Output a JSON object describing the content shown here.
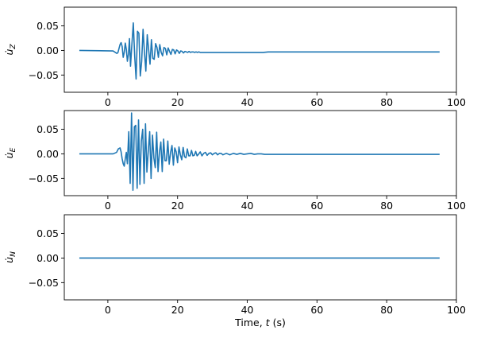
{
  "chart_data": [
    {
      "type": "line",
      "ylabel": "u̇_Z",
      "ylabel_base": "u̇",
      "ylabel_sub": "Z",
      "xlabel": "",
      "xlim": [
        -12.5,
        100
      ],
      "ylim": [
        -0.085,
        0.088
      ],
      "xticks": [
        0,
        20,
        40,
        60,
        80,
        100
      ],
      "yticks": [
        0.05,
        0.0,
        -0.05
      ],
      "xtick_labels": [
        "0",
        "20",
        "40",
        "60",
        "80",
        "100"
      ],
      "ytick_labels": [
        "0.05",
        "0.00",
        "−0.05"
      ],
      "color": "#1f77b4",
      "series": [
        {
          "x": [
            -8,
            1.5,
            2.6,
            2.9,
            3.2,
            3.5,
            3.8,
            4.1,
            4.4,
            4.7,
            5.0,
            5.3,
            5.6,
            5.9,
            6.2,
            6.5,
            6.9,
            7.3,
            7.7,
            8.1,
            8.5,
            8.9,
            9.3,
            9.7,
            10.1,
            10.5,
            10.9,
            11.3,
            11.7,
            12.1,
            12.5,
            12.9,
            13.3,
            13.7,
            14.1,
            14.5,
            14.9,
            15.3,
            15.7,
            16.1,
            16.5,
            16.9,
            17.3,
            17.7,
            18.1,
            18.5,
            18.9,
            19.3,
            19.7,
            20.1,
            20.5,
            20.9,
            21.3,
            21.7,
            22.1,
            22.5,
            22.9,
            23.3,
            23.7,
            24.1,
            24.5,
            24.9,
            25.3,
            25.7,
            26.1,
            26.5,
            27,
            28,
            30,
            35,
            40,
            44.5,
            46,
            60,
            80,
            95
          ],
          "y": [
            0.0,
            -0.001,
            -0.006,
            -0.004,
            0.004,
            0.012,
            0.016,
            0.008,
            -0.014,
            -0.004,
            0.015,
            0.002,
            -0.022,
            -0.008,
            0.024,
            -0.032,
            0.013,
            0.056,
            -0.012,
            -0.058,
            0.039,
            0.035,
            -0.052,
            -0.022,
            0.043,
            -0.004,
            -0.042,
            0.032,
            0.002,
            -0.028,
            0.022,
            -0.016,
            -0.018,
            0.014,
            0.006,
            -0.014,
            0.012,
            -0.004,
            -0.011,
            0.006,
            0.004,
            -0.009,
            0.005,
            -0.002,
            -0.008,
            0.002,
            0.001,
            -0.007,
            0.001,
            -0.001,
            -0.006,
            -0.001,
            -0.002,
            -0.005,
            -0.002,
            -0.003,
            -0.004,
            -0.002,
            -0.004,
            -0.003,
            -0.003,
            -0.004,
            -0.003,
            -0.004,
            -0.003,
            -0.004,
            -0.004,
            -0.004,
            -0.004,
            -0.004,
            -0.004,
            -0.004,
            -0.003,
            -0.003,
            -0.003,
            -0.003
          ]
        }
      ]
    },
    {
      "type": "line",
      "ylabel": "u̇_E",
      "ylabel_base": "u̇",
      "ylabel_sub": "E",
      "xlabel": "",
      "xlim": [
        -12.5,
        100
      ],
      "ylim": [
        -0.085,
        0.088
      ],
      "xticks": [
        0,
        20,
        40,
        60,
        80,
        100
      ],
      "yticks": [
        0.05,
        0.0,
        -0.05
      ],
      "xtick_labels": [
        "0",
        "20",
        "40",
        "60",
        "80",
        "100"
      ],
      "ytick_labels": [
        "0.05",
        "0.00",
        "−0.05"
      ],
      "color": "#1f77b4",
      "series": [
        {
          "x": [
            -8,
            1.5,
            2.5,
            3.0,
            3.5,
            3.8,
            4.1,
            4.4,
            4.7,
            5.0,
            5.3,
            5.6,
            6.0,
            6.4,
            6.8,
            7.2,
            7.6,
            8.0,
            8.4,
            8.8,
            9.2,
            9.6,
            10.0,
            10.4,
            10.8,
            11.2,
            11.6,
            12.0,
            12.4,
            12.8,
            13.2,
            13.6,
            14.0,
            14.4,
            14.8,
            15.2,
            15.6,
            16.0,
            16.4,
            16.8,
            17.2,
            17.6,
            18.0,
            18.4,
            18.8,
            19.2,
            19.6,
            20.0,
            20.4,
            20.8,
            21.2,
            21.6,
            22.0,
            22.4,
            22.8,
            23.2,
            23.6,
            24.0,
            24.4,
            24.8,
            25.2,
            25.6,
            26.0,
            26.5,
            27.0,
            27.5,
            28.0,
            28.5,
            29.0,
            29.5,
            30.0,
            30.5,
            31.0,
            31.5,
            32.0,
            32.5,
            33.0,
            34.0,
            35.0,
            36.0,
            37.0,
            38.0,
            39.0,
            40.0,
            41.0,
            42.0,
            43.0,
            44.0,
            45.0,
            50,
            60,
            80,
            95
          ],
          "y": [
            0.0,
            0.0,
            0.003,
            0.01,
            0.012,
            0.004,
            -0.01,
            -0.02,
            -0.025,
            -0.01,
            0.003,
            -0.02,
            0.045,
            -0.06,
            0.083,
            -0.074,
            0.055,
            0.058,
            -0.07,
            0.069,
            -0.062,
            0.026,
            0.05,
            -0.06,
            0.061,
            -0.037,
            0.006,
            0.045,
            -0.05,
            0.038,
            -0.008,
            -0.028,
            0.044,
            -0.036,
            0.003,
            0.024,
            -0.036,
            0.03,
            -0.014,
            -0.014,
            0.026,
            -0.021,
            0.003,
            0.017,
            -0.023,
            0.012,
            0.004,
            -0.018,
            0.014,
            -0.002,
            -0.012,
            0.013,
            -0.006,
            -0.008,
            0.01,
            -0.004,
            -0.004,
            0.007,
            -0.004,
            -0.003,
            0.005,
            -0.004,
            -0.001,
            0.004,
            -0.004,
            0.001,
            0.003,
            -0.003,
            0.001,
            0.002,
            -0.002,
            0.001,
            0.002,
            -0.002,
            0.001,
            0.001,
            -0.002,
            0.001,
            -0.002,
            0.001,
            -0.001,
            0.001,
            -0.001,
            0.0,
            0.001,
            -0.001,
            0.0,
            0.0,
            -0.001,
            -0.001,
            -0.001,
            -0.001,
            -0.001
          ]
        }
      ]
    },
    {
      "type": "line",
      "ylabel": "u̇_N",
      "ylabel_base": "u̇",
      "ylabel_sub": "N",
      "xlabel": "Time, t (s)",
      "xlabel_parts": [
        "Time, ",
        "t",
        " (s)"
      ],
      "xlim": [
        -12.5,
        100
      ],
      "ylim": [
        -0.085,
        0.088
      ],
      "xticks": [
        0,
        20,
        40,
        60,
        80,
        100
      ],
      "yticks": [
        0.05,
        0.0,
        -0.05
      ],
      "xtick_labels": [
        "0",
        "20",
        "40",
        "60",
        "80",
        "100"
      ],
      "ytick_labels": [
        "0.05",
        "0.00",
        "−0.05"
      ],
      "color": "#1f77b4",
      "series": [
        {
          "x": [
            -8,
            95
          ],
          "y": [
            0.0,
            0.0
          ]
        }
      ]
    }
  ]
}
